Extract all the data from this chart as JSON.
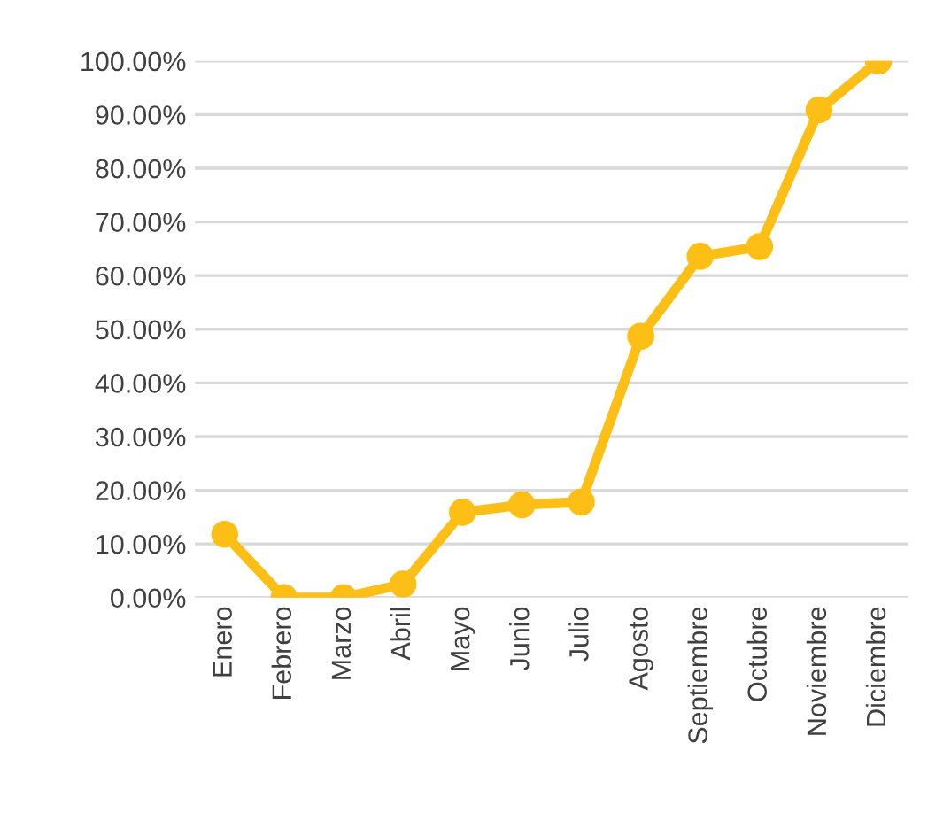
{
  "chart_data": {
    "type": "line",
    "categories": [
      "Enero",
      "Febrero",
      "Marzo",
      "Abril",
      "Mayo",
      "Junio",
      "Julio",
      "Agosto",
      "Septiembre",
      "Octubre",
      "Noviembre",
      "Diciembre"
    ],
    "series": [
      {
        "color": "#fdbf16",
        "values": [
          11.8,
          0,
          0,
          2.5,
          15.9,
          17.3,
          17.8,
          48.7,
          63.6,
          65.4,
          90.9,
          100
        ]
      }
    ],
    "ylim": [
      0,
      100
    ],
    "yticks": [
      {
        "value": 0,
        "label": "0.00%"
      },
      {
        "value": 10,
        "label": "10.00%"
      },
      {
        "value": 20,
        "label": "20.00%"
      },
      {
        "value": 30,
        "label": "30.00%"
      },
      {
        "value": 40,
        "label": "40.00%"
      },
      {
        "value": 50,
        "label": "50.00%"
      },
      {
        "value": 60,
        "label": "60.00%"
      },
      {
        "value": 70,
        "label": "70.00%"
      },
      {
        "value": 80,
        "label": "80.00%"
      },
      {
        "value": 90,
        "label": "90.00%"
      },
      {
        "value": 100,
        "label": "100.00%"
      }
    ],
    "grid": "y",
    "marker": "circle",
    "line_style": "solid"
  }
}
